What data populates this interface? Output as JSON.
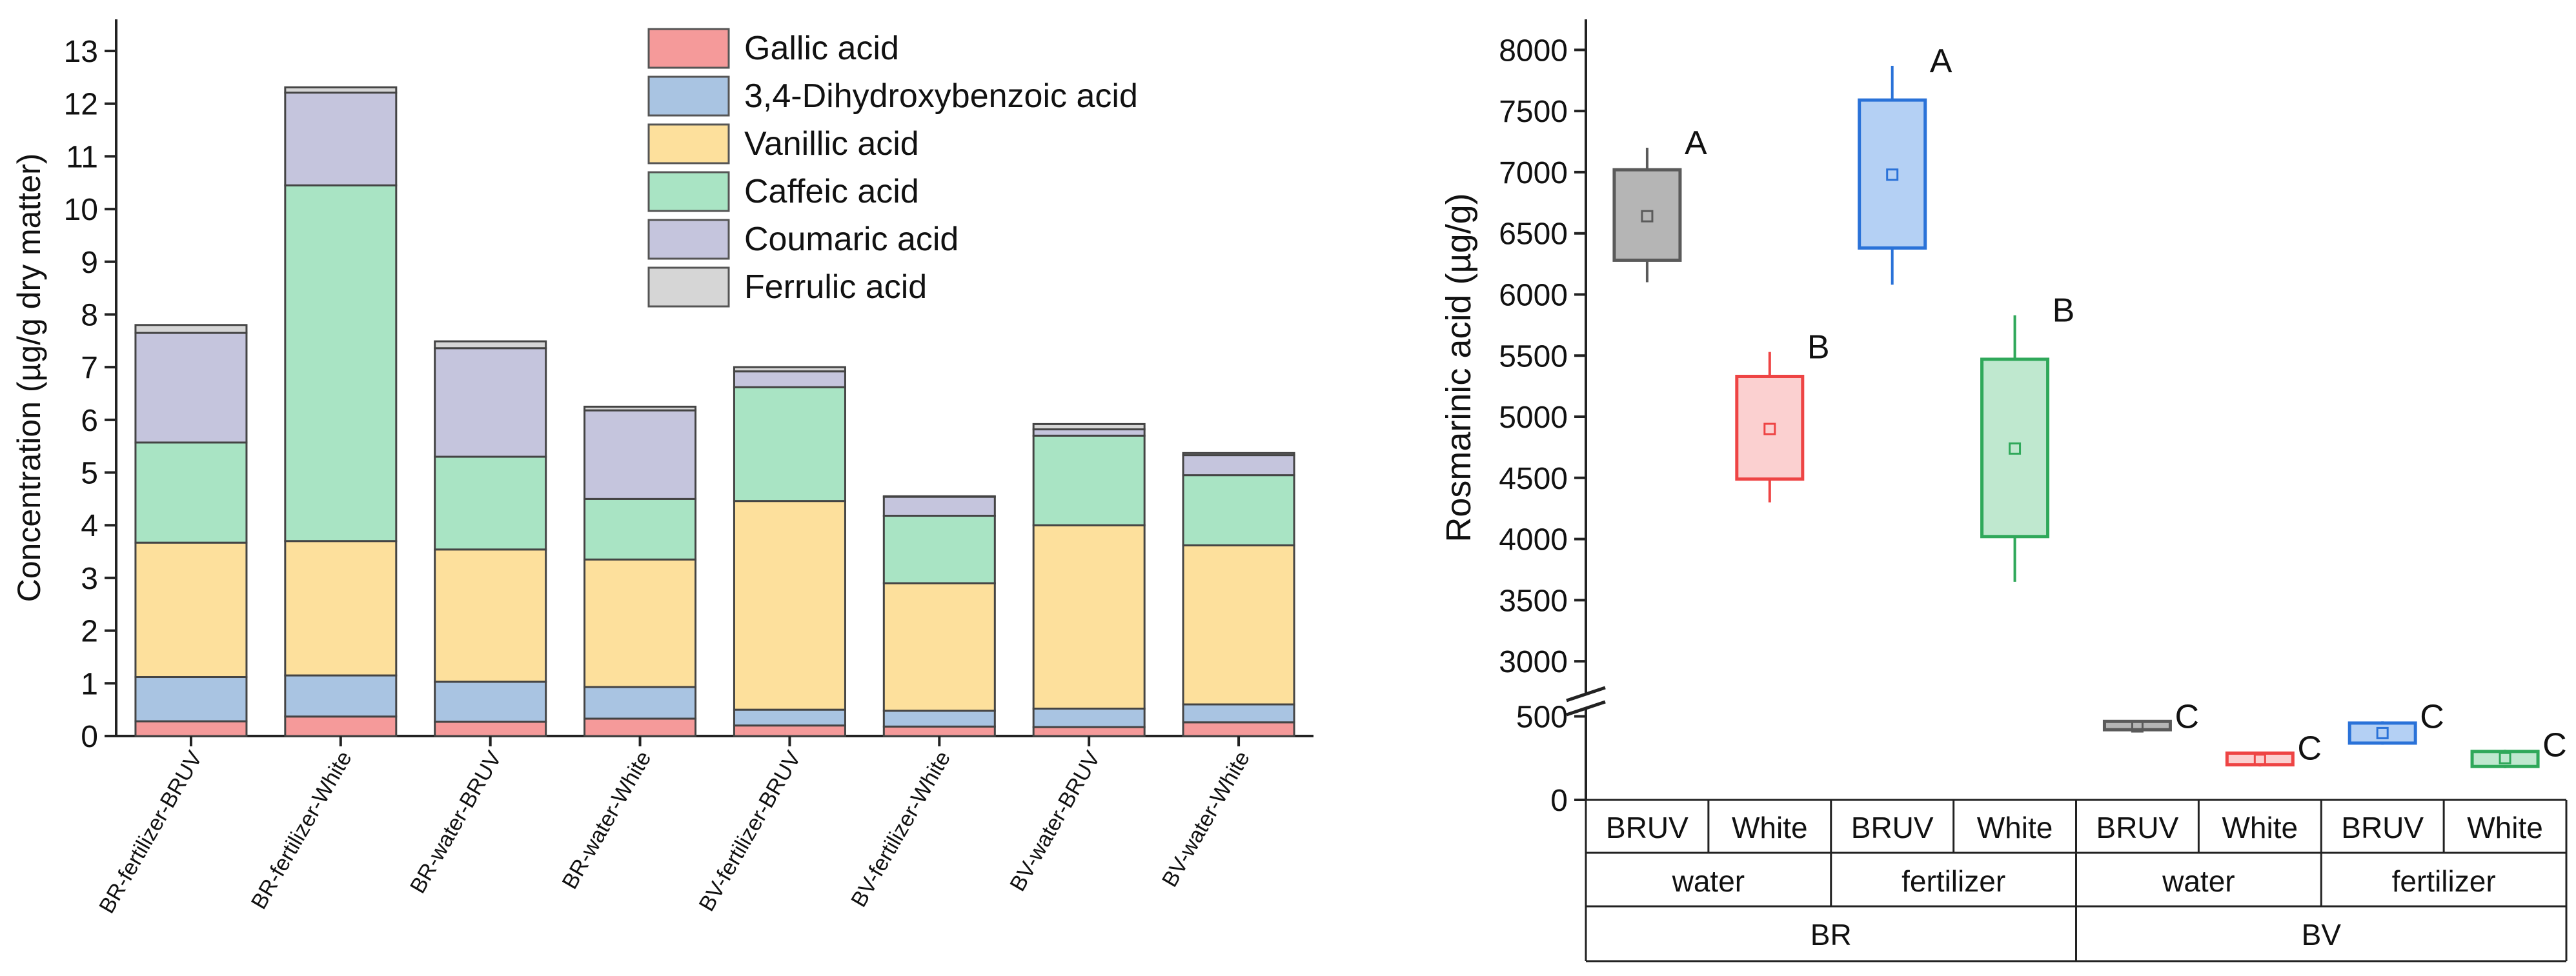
{
  "chart_data": [
    {
      "type": "bar",
      "stacked": true,
      "ylabel": "Concentration (µg/g dry matter)",
      "ylim": [
        0,
        13.6
      ],
      "yticks": [
        "0",
        "1",
        "2",
        "3",
        "4",
        "5",
        "6",
        "7",
        "8",
        "9",
        "10",
        "11",
        "12",
        "13"
      ],
      "legend_position": "top-right",
      "categories": [
        "BR-fertilizer-BRUV",
        "BR-fertilizer-White",
        "BR-water-BRUV",
        "BR-water-White",
        "BV-fertilizer-BRUV",
        "BV-fertilizer-White",
        "BV-water-BRUV",
        "BV-water-White"
      ],
      "series": [
        {
          "name": "Gallic acid",
          "color": "#f59a9a",
          "values": [
            0.28,
            0.37,
            0.27,
            0.33,
            0.2,
            0.18,
            0.17,
            0.26
          ]
        },
        {
          "name": "3,4-Dihydroxybenzoic acid",
          "color": "#a9c4e2",
          "values": [
            0.84,
            0.78,
            0.76,
            0.6,
            0.3,
            0.3,
            0.35,
            0.34
          ]
        },
        {
          "name": "Vanillic acid",
          "color": "#fde09c",
          "values": [
            2.55,
            2.55,
            2.51,
            2.42,
            3.96,
            2.42,
            3.48,
            3.02
          ]
        },
        {
          "name": "Caffeic acid",
          "color": "#a9e4c4",
          "values": [
            1.9,
            6.75,
            1.76,
            1.15,
            2.16,
            1.28,
            1.7,
            1.33
          ]
        },
        {
          "name": "Coumaric acid",
          "color": "#c5c5dd",
          "values": [
            2.08,
            1.76,
            2.06,
            1.68,
            0.3,
            0.36,
            0.12,
            0.38
          ]
        },
        {
          "name": "Ferrulic acid",
          "color": "#d6d6d6",
          "values": [
            0.15,
            0.1,
            0.13,
            0.07,
            0.08,
            0.01,
            0.1,
            0.04
          ]
        }
      ]
    },
    {
      "type": "box",
      "ylabel": "Rosmarinic acid (µg/g)",
      "axis_break": [
        500,
        2700
      ],
      "yticks_lower": [
        "0",
        "500"
      ],
      "yticks_upper": [
        "3000",
        "3500",
        "4000",
        "4500",
        "5000",
        "5500",
        "6000",
        "6500",
        "7000",
        "7500",
        "8000"
      ],
      "categories_level1": [
        "BRUV",
        "White",
        "BRUV",
        "White",
        "BRUV",
        "White",
        "BRUV",
        "White"
      ],
      "categories_level2": [
        "water",
        "fertilizer",
        "water",
        "fertilizer"
      ],
      "categories_level3": [
        "BR",
        "BV"
      ],
      "boxes": [
        {
          "group": "BR-water-BRUV",
          "color": "#5a5a5a",
          "fill": "#b5b5b5",
          "whisker_low": 6100,
          "q1": 6280,
          "mean": 6640,
          "q3": 7020,
          "whisker_high": 7200,
          "letter": "A"
        },
        {
          "group": "BR-water-White",
          "color": "#ee4444",
          "fill": "#fbd0d0",
          "whisker_low": 4300,
          "q1": 4490,
          "mean": 4900,
          "q3": 5330,
          "whisker_high": 5530,
          "letter": "B"
        },
        {
          "group": "BR-fertilizer-BRUV",
          "color": "#2a72d8",
          "fill": "#b4d0f4",
          "whisker_low": 6080,
          "q1": 6380,
          "mean": 6980,
          "q3": 7590,
          "whisker_high": 7870,
          "letter": "A"
        },
        {
          "group": "BR-fertilizer-White",
          "color": "#2fa85a",
          "fill": "#bfe8cf",
          "whisker_low": 3650,
          "q1": 4020,
          "mean": 4740,
          "q3": 5470,
          "whisker_high": 5830,
          "letter": "B"
        },
        {
          "group": "BV-water-BRUV",
          "color": "#5a5a5a",
          "fill": "#b5b5b5",
          "whisker_low": 420,
          "q1": 420,
          "mean": 440,
          "q3": 470,
          "whisker_high": 470,
          "letter": "C"
        },
        {
          "group": "BV-water-White",
          "color": "#ee4444",
          "fill": "#fbd0d0",
          "whisker_low": 200,
          "q1": 210,
          "mean": 240,
          "q3": 280,
          "whisker_high": 280,
          "letter": "C"
        },
        {
          "group": "BV-fertilizer-BRUV",
          "color": "#2a72d8",
          "fill": "#b4d0f4",
          "whisker_low": 330,
          "q1": 340,
          "mean": 400,
          "q3": 460,
          "whisker_high": 470,
          "letter": "C"
        },
        {
          "group": "BV-fertilizer-White",
          "color": "#2fa85a",
          "fill": "#bfe8cf",
          "whisker_low": 190,
          "q1": 200,
          "mean": 250,
          "q3": 290,
          "whisker_high": 300,
          "letter": "C"
        }
      ]
    }
  ]
}
